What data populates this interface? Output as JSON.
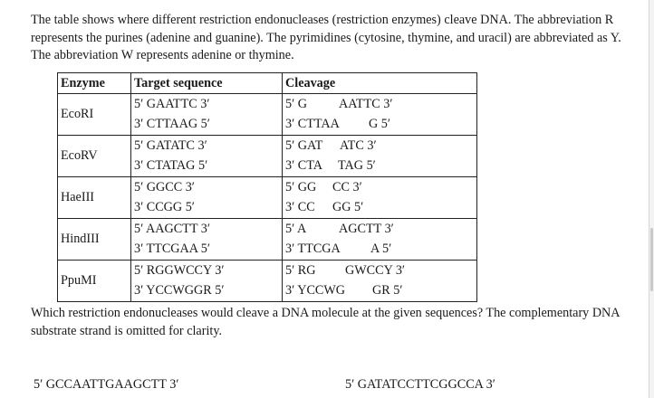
{
  "intro": "The table shows where different restriction endonucleases (restriction enzymes) cleave DNA. The abbreviation R represents the purines (adenine and guanine). The pyrimidines (cytosine, thymine, and uracil) are abbreviated as Y. The abbreviation W represents adenine or thymine.",
  "table": {
    "headers": [
      "Enzyme",
      "Target sequence",
      "Cleavage"
    ],
    "rows": [
      {
        "enzyme": "EcoRI",
        "target_top": "5′ GAATTC 3′",
        "target_bottom": "3′ CTTAAG 5′",
        "cleave_top_a": "5′ G",
        "cleave_top_b": "AATTC 3′",
        "cleave_bottom_a": "3′ CTTAA",
        "cleave_bottom_b": "G 5′"
      },
      {
        "enzyme": "EcoRV",
        "target_top": "5′ GATATC 3′",
        "target_bottom": "3′ CTATAG 5′",
        "cleave_top_a": "5′ GAT",
        "cleave_top_b": "ATC 3′",
        "cleave_bottom_a": "3′ CTA",
        "cleave_bottom_b": "TAG 5′"
      },
      {
        "enzyme": "HaeIII",
        "target_top": "5′ GGCC 3′",
        "target_bottom": "3′ CCGG 5′",
        "cleave_top_a": "5′ GG",
        "cleave_top_b": "CC 3′",
        "cleave_bottom_a": "3′ CC",
        "cleave_bottom_b": "GG 5′"
      },
      {
        "enzyme": "HindIII",
        "target_top": "5′ AAGCTT 3′",
        "target_bottom": "3′ TTCGAA 5′",
        "cleave_top_a": "5′ A",
        "cleave_top_b": "AGCTT 3′",
        "cleave_bottom_a": "3′ TTCGA",
        "cleave_bottom_b": "A 5′"
      },
      {
        "enzyme": "PpuMI",
        "target_top": "5′ RGGWCCY 3′",
        "target_bottom": "3′ YCCWGGR 5′",
        "cleave_top_a": "5′ RG",
        "cleave_top_b": "GWCCY 3′",
        "cleave_bottom_a": "3′ YCCWG",
        "cleave_bottom_b": "GR 5′"
      }
    ]
  },
  "question": "Which restriction endonucleases would cleave a DNA molecule at the given sequences? The complementary DNA substrate strand is omitted for clarity.",
  "sequences": [
    "5′ GCCAATTGAAGCTT 3′",
    "5′ GATATCCTTCGGCCA 3′"
  ]
}
